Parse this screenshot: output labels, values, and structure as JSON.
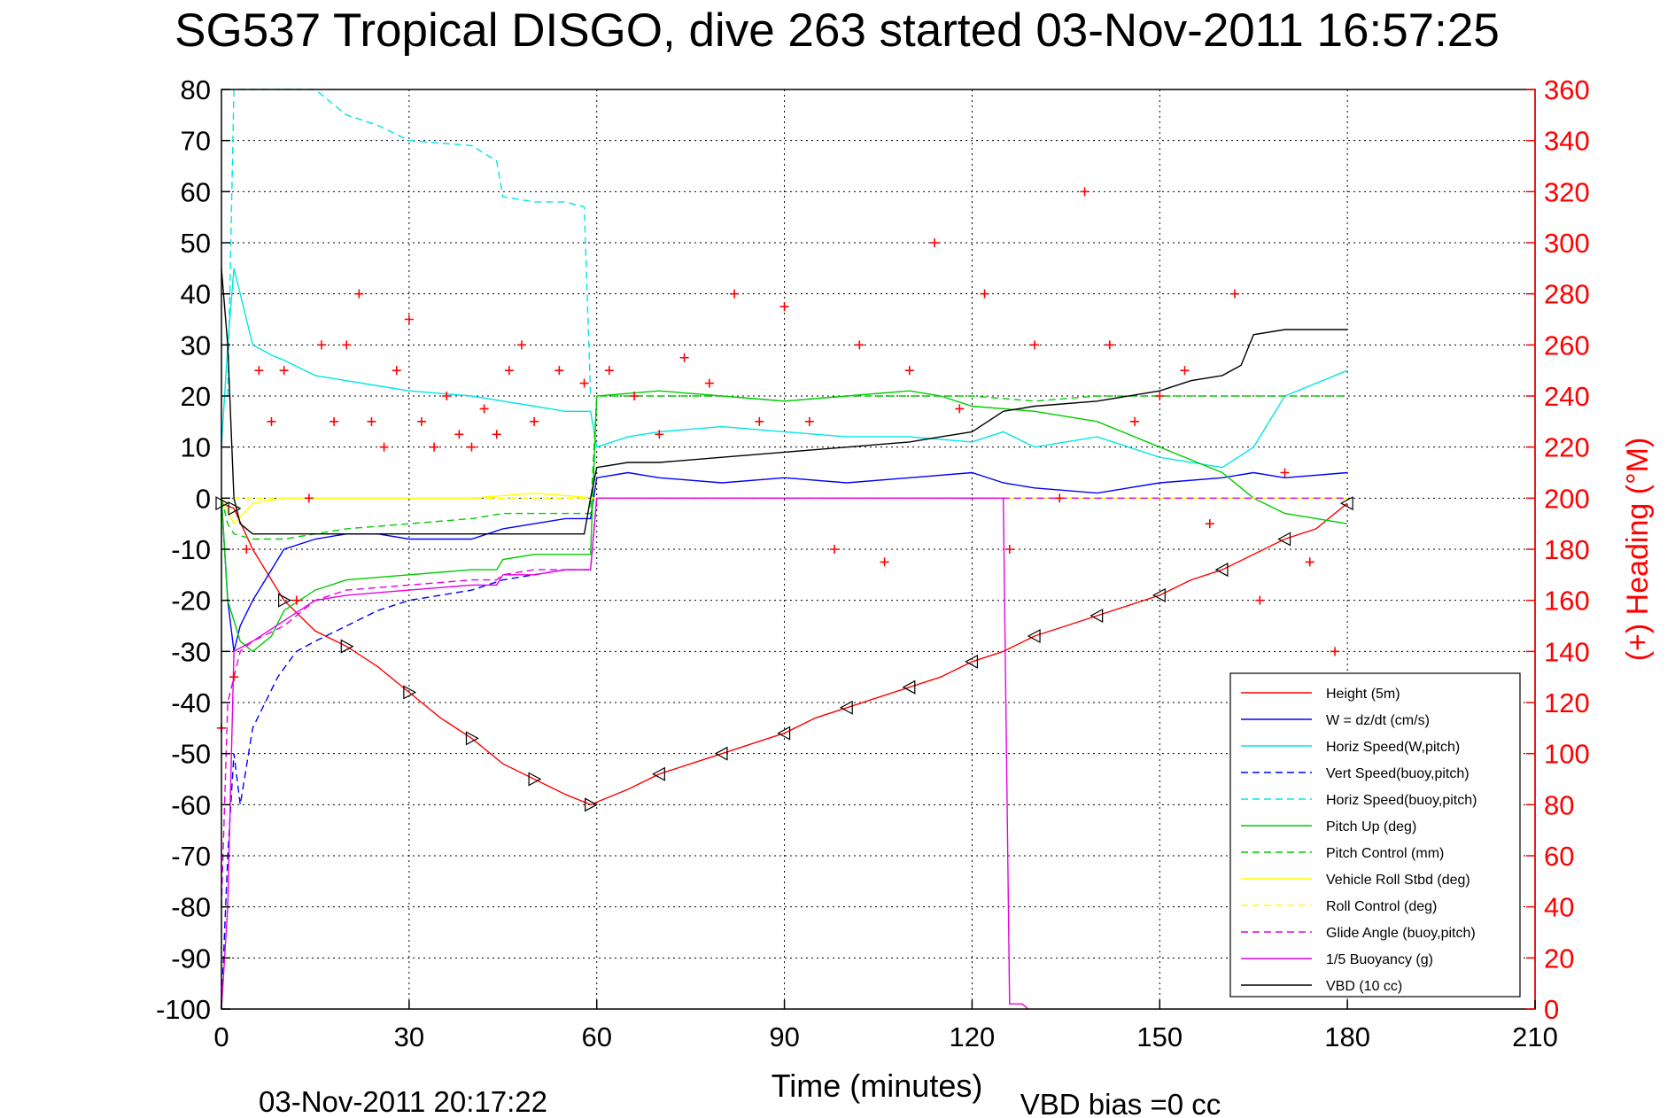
{
  "chart_data": {
    "type": "line",
    "title": "SG537 Tropical DISGO, dive 263 started 03-Nov-2011 16:57:25",
    "xlabel": "Time (minutes)",
    "ylabel": "",
    "y2label": "(+) Heading (°M)",
    "footer_left": "03-Nov-2011 20:17:22",
    "footer_right": "VBD bias =0 cc",
    "xlim": [
      0,
      210
    ],
    "ylim": [
      -100,
      80
    ],
    "y2lim": [
      0,
      360
    ],
    "grid": true,
    "legend_position": "bottom-right",
    "x_ticks": [
      "0",
      "30",
      "60",
      "90",
      "120",
      "150",
      "180",
      "210"
    ],
    "y_ticks": [
      "80",
      "70",
      "60",
      "50",
      "40",
      "30",
      "20",
      "10",
      "0",
      "-10",
      "-20",
      "-30",
      "-40",
      "-50",
      "-60",
      "-70",
      "-80",
      "-90",
      "-100"
    ],
    "y2_ticks": [
      "360",
      "340",
      "320",
      "300",
      "280",
      "260",
      "240",
      "220",
      "200",
      "180",
      "160",
      "140",
      "120",
      "100",
      "80",
      "60",
      "40",
      "20",
      "0"
    ],
    "series": [
      {
        "name": "Height (5m)",
        "color": "#ff0000",
        "style": "solid",
        "x": [
          0,
          1,
          2,
          5,
          10,
          15,
          20,
          25,
          30,
          35,
          40,
          45,
          50,
          55,
          59,
          65,
          70,
          75,
          80,
          85,
          90,
          95,
          100,
          105,
          110,
          115,
          120,
          125,
          130,
          135,
          140,
          145,
          150,
          155,
          160,
          165,
          170,
          175,
          180
        ],
        "y": [
          -1,
          -1.5,
          -2,
          -10,
          -20,
          -26,
          -29,
          -33,
          -38,
          -43,
          -47,
          -52,
          -55,
          -58,
          -60,
          -57,
          -54,
          -52,
          -50,
          -48,
          -46,
          -43,
          -41,
          -39,
          -37,
          -35,
          -32,
          -30,
          -27,
          -25,
          -23,
          -21,
          -19,
          -16,
          -14,
          -11,
          -8,
          -6,
          -1
        ]
      },
      {
        "name": "W = dz/dt (cm/s)",
        "color": "#0000ff",
        "style": "solid",
        "x": [
          0,
          1,
          2,
          3,
          5,
          8,
          10,
          15,
          20,
          25,
          30,
          40,
          45,
          50,
          55,
          59,
          60,
          65,
          70,
          80,
          90,
          100,
          110,
          120,
          125,
          130,
          140,
          150,
          160,
          165,
          170,
          180
        ],
        "y": [
          0,
          -20,
          -30,
          -25,
          -20,
          -14,
          -10,
          -8,
          -7,
          -7,
          -8,
          -8,
          -6,
          -5,
          -4,
          -4,
          4,
          5,
          4,
          3,
          4,
          3,
          4,
          5,
          3,
          2,
          1,
          3,
          4,
          5,
          4,
          5
        ]
      },
      {
        "name": "Horiz Speed(W,pitch)",
        "color": "#00e5e5",
        "style": "solid",
        "x": [
          0,
          1,
          2,
          3,
          5,
          8,
          10,
          15,
          20,
          25,
          30,
          40,
          45,
          50,
          55,
          59,
          60,
          65,
          70,
          80,
          90,
          100,
          110,
          120,
          125,
          130,
          140,
          150,
          160,
          165,
          170,
          180
        ],
        "y": [
          10,
          30,
          45,
          40,
          30,
          28,
          27,
          24,
          23,
          22,
          21,
          20,
          19,
          18,
          17,
          17,
          10,
          12,
          13,
          14,
          13,
          12,
          12,
          11,
          13,
          10,
          12,
          8,
          6,
          10,
          20,
          25
        ]
      },
      {
        "name": "Vert Speed(buoy,pitch)",
        "color": "#0000ff",
        "style": "dashed",
        "x": [
          0,
          1,
          2,
          3,
          5,
          7,
          9,
          12,
          15,
          20,
          25,
          30,
          40,
          45,
          50,
          55,
          59
        ],
        "y": [
          -100,
          -70,
          -50,
          -60,
          -45,
          -40,
          -35,
          -30,
          -28,
          -25,
          -22,
          -20,
          -18,
          -16,
          -15,
          -14,
          -14
        ]
      },
      {
        "name": "Horiz Speed(buoy,pitch)",
        "color": "#00e5e5",
        "style": "dashed",
        "x": [
          1,
          2,
          3,
          5,
          10,
          15,
          20,
          25,
          30,
          40,
          44,
          45,
          50,
          55,
          58,
          59
        ],
        "y": [
          20,
          80,
          80,
          80,
          80,
          80,
          75,
          73,
          70,
          69,
          66,
          59,
          58,
          58,
          57,
          20
        ]
      },
      {
        "name": "Pitch Up (deg)",
        "color": "#00cc00",
        "style": "solid",
        "x": [
          0,
          1,
          3,
          5,
          8,
          10,
          15,
          20,
          30,
          40,
          44,
          45,
          50,
          55,
          59,
          60,
          70,
          80,
          90,
          100,
          110,
          115,
          120,
          130,
          140,
          150,
          160,
          165,
          170,
          180
        ],
        "y": [
          0,
          -20,
          -28,
          -30,
          -27,
          -22,
          -18,
          -16,
          -15,
          -14,
          -14,
          -12,
          -11,
          -11,
          -11,
          20,
          21,
          20,
          19,
          20,
          21,
          20,
          18,
          17,
          15,
          10,
          5,
          0,
          -3,
          -5
        ]
      },
      {
        "name": "Pitch Control (mm)",
        "color": "#00cc00",
        "style": "dashed",
        "x": [
          0,
          1,
          2,
          5,
          10,
          15,
          20,
          30,
          40,
          45,
          50,
          59,
          60,
          70,
          80,
          90,
          100,
          110,
          120,
          130,
          140,
          150,
          160,
          170,
          180
        ],
        "y": [
          0,
          -5,
          -7,
          -8,
          -8,
          -7,
          -6,
          -5,
          -4,
          -3,
          -3,
          -3,
          20,
          20,
          20,
          19,
          20,
          20,
          20,
          19,
          20,
          20,
          20,
          20,
          20
        ]
      },
      {
        "name": "Vehicle Roll Stbd (deg)",
        "color": "#ffff00",
        "style": "solid",
        "x": [
          0,
          2,
          5,
          10,
          15,
          20,
          30,
          40,
          50,
          60,
          70,
          80,
          90,
          100,
          110,
          120,
          130,
          140,
          150,
          160,
          170,
          180
        ],
        "y": [
          0,
          -5,
          -1,
          0,
          0,
          0,
          0,
          0,
          1,
          0,
          0,
          0,
          0,
          0,
          0,
          0,
          0,
          0,
          0,
          0,
          0,
          0
        ]
      },
      {
        "name": "Roll Control (deg)",
        "color": "#ffff00",
        "style": "dashed",
        "x": [
          0,
          2,
          5,
          10,
          15,
          20,
          30,
          40,
          50,
          60,
          70,
          80,
          90,
          100,
          110,
          120,
          130,
          140,
          150,
          160,
          170,
          180
        ],
        "y": [
          0,
          0,
          0,
          0,
          0,
          0,
          0,
          0,
          0,
          0,
          0,
          0,
          0,
          0,
          0,
          0,
          0,
          0,
          0,
          0,
          0,
          0
        ]
      },
      {
        "name": "Glide Angle (buoy,pitch)",
        "color": "#e500e5",
        "style": "dashed",
        "x": [
          0,
          1,
          3,
          5,
          10,
          15,
          20,
          30,
          40,
          44,
          45,
          50,
          55,
          59,
          60,
          70,
          80,
          90,
          100,
          110,
          120,
          130,
          140,
          150,
          160,
          170,
          180
        ],
        "y": [
          -80,
          -40,
          -30,
          -28,
          -25,
          -20,
          -18,
          -17,
          -16,
          -16,
          -15,
          -14,
          -14,
          -14,
          0,
          0,
          0,
          0,
          0,
          0,
          0,
          0,
          0,
          0,
          0,
          0,
          0
        ]
      },
      {
        "name": "1/5 Buoyancy (g)",
        "color": "#e500e5",
        "style": "solid",
        "x": [
          0,
          1,
          2,
          5,
          10,
          15,
          20,
          30,
          40,
          44,
          45,
          50,
          55,
          59,
          60,
          125,
          126,
          128,
          129
        ],
        "y": [
          -100,
          -80,
          -30,
          -28,
          -24,
          -20,
          -19,
          -18,
          -17,
          -17,
          -15,
          -15,
          -14,
          -14,
          0,
          0,
          -99,
          -99,
          -100
        ]
      },
      {
        "name": "VBD (10 cc)",
        "color": "#000000",
        "style": "solid",
        "x": [
          0,
          1,
          2,
          3,
          5,
          10,
          15,
          20,
          30,
          40,
          50,
          58,
          59,
          60,
          65,
          70,
          80,
          90,
          100,
          110,
          115,
          120,
          125,
          130,
          140,
          150,
          155,
          160,
          163,
          165,
          170,
          180
        ],
        "y": [
          45,
          30,
          0,
          -5,
          -7,
          -7,
          -7,
          -7,
          -7,
          -7,
          -7,
          -7,
          0,
          6,
          7,
          7,
          8,
          9,
          10,
          11,
          12,
          13,
          17,
          18,
          19,
          21,
          23,
          24,
          26,
          32,
          33,
          33
        ]
      },
      {
        "name": "Heading",
        "color": "#ff0000",
        "style": "markers",
        "axis": "right",
        "x": [
          0,
          2,
          4,
          6,
          8,
          10,
          12,
          14,
          16,
          18,
          20,
          22,
          24,
          26,
          28,
          30,
          32,
          34,
          36,
          38,
          40,
          42,
          44,
          46,
          48,
          50,
          54,
          58,
          62,
          66,
          70,
          74,
          78,
          82,
          86,
          90,
          94,
          98,
          102,
          106,
          110,
          114,
          118,
          122,
          126,
          130,
          134,
          138,
          142,
          146,
          150,
          154,
          158,
          162,
          166,
          170,
          174,
          178
        ],
        "y": [
          110,
          130,
          180,
          250,
          230,
          250,
          160,
          200,
          260,
          230,
          260,
          280,
          230,
          220,
          250,
          270,
          230,
          220,
          240,
          225,
          220,
          235,
          225,
          250,
          260,
          230,
          250,
          245,
          250,
          240,
          225,
          255,
          245,
          280,
          230,
          275,
          230,
          180,
          260,
          175,
          250,
          300,
          235,
          280,
          180,
          260,
          200,
          320,
          260,
          230,
          240,
          250,
          190,
          280,
          160,
          210,
          175,
          140
        ]
      }
    ]
  }
}
